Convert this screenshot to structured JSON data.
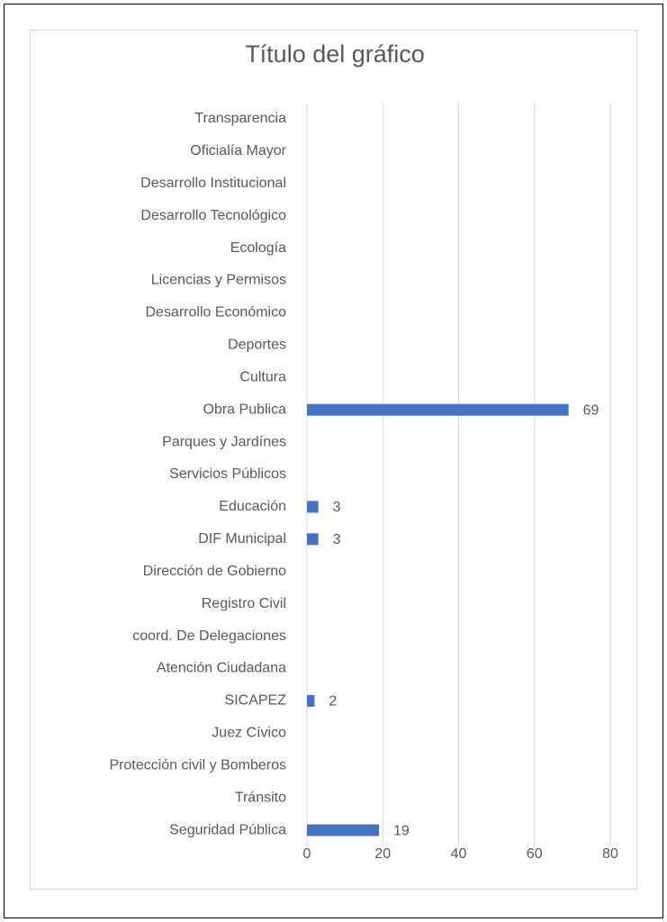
{
  "chart_data": {
    "type": "bar",
    "orientation": "horizontal",
    "title": "Título del gráfico",
    "categories": [
      "Transparencia",
      "Oficialía Mayor",
      "Desarrollo Institucional",
      "Desarrollo Tecnológico",
      "Ecología",
      "Licencias y Permisos",
      "Desarrollo Económico",
      "Deportes",
      "Cultura",
      "Obra Publica",
      "Parques y Jardínes",
      "Servicios Públicos",
      "Educación",
      "DIF Municipal",
      "Dirección de Gobierno",
      "Registro Civil",
      "coord. De Delegaciones",
      "Atención Ciudadana",
      "SICAPEZ",
      "Juez Cívico",
      "Protección civil y Bomberos",
      "Tránsito",
      "Seguridad Pública"
    ],
    "values": [
      null,
      null,
      null,
      null,
      null,
      null,
      null,
      null,
      null,
      69,
      null,
      null,
      3,
      3,
      null,
      null,
      null,
      null,
      2,
      null,
      null,
      null,
      19
    ],
    "color": "#4472c4",
    "xlim": [
      0,
      80
    ],
    "xticks": [
      0,
      20,
      40,
      60,
      80
    ],
    "grid": true
  }
}
